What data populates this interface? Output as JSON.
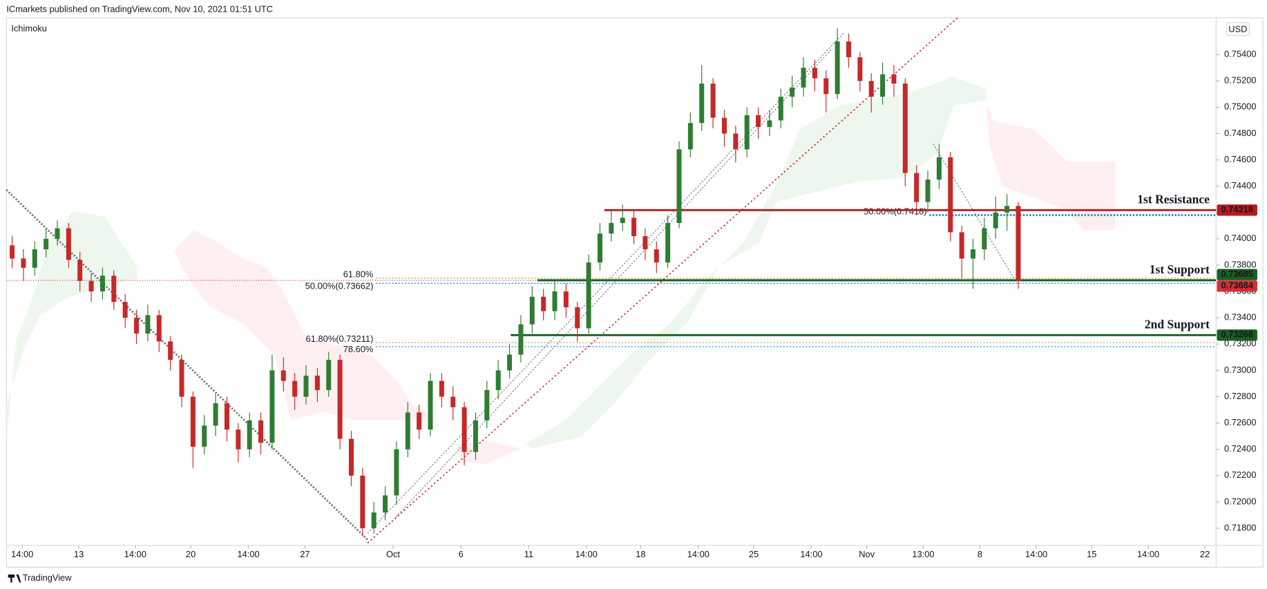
{
  "header": {
    "publisher": "ICmarkets published on TradingView.com, Nov 10, 2021 01:51 UTC",
    "indicator": "Ichimoku",
    "currency": "USD",
    "footer": "TradingView"
  },
  "chart_data": {
    "type": "candlestick",
    "up_color": "#2e7d32",
    "down_color": "#c62828",
    "xlim": [
      -0.5,
      106.5
    ],
    "xticks": [
      {
        "value": 0.9,
        "label": "14:00"
      },
      {
        "value": 5.9,
        "label": "13"
      },
      {
        "value": 10.9,
        "label": "14:00"
      },
      {
        "value": 15.8,
        "label": "20"
      },
      {
        "value": 20.9,
        "label": "14:00"
      },
      {
        "value": 25.9,
        "label": "27"
      },
      {
        "value": 33.7,
        "label": "Oct"
      },
      {
        "value": 39.7,
        "label": "6"
      },
      {
        "value": 45.7,
        "label": "11"
      },
      {
        "value": 50.8,
        "label": "14:00"
      },
      {
        "value": 55.6,
        "label": "18"
      },
      {
        "value": 60.7,
        "label": "14:00"
      },
      {
        "value": 65.6,
        "label": "25"
      },
      {
        "value": 70.7,
        "label": "14:00"
      },
      {
        "value": 75.6,
        "label": "Nov"
      },
      {
        "value": 80.6,
        "label": "13:00"
      },
      {
        "value": 85.6,
        "label": "8"
      },
      {
        "value": 90.6,
        "label": "14:00"
      },
      {
        "value": 95.5,
        "label": "15"
      },
      {
        "value": 100.5,
        "label": "14:00"
      },
      {
        "value": 105.5,
        "label": "22"
      }
    ],
    "ylim": [
      0.7167,
      0.7568
    ],
    "yticks": [
      {
        "value": 0.754,
        "label": "0.75400"
      },
      {
        "value": 0.752,
        "label": "0.75200"
      },
      {
        "value": 0.75,
        "label": "0.75000"
      },
      {
        "value": 0.748,
        "label": "0.74800"
      },
      {
        "value": 0.746,
        "label": "0.74600"
      },
      {
        "value": 0.744,
        "label": "0.74400"
      },
      {
        "value": 0.742,
        "label": "0.74200"
      },
      {
        "value": 0.74,
        "label": "0.74000"
      },
      {
        "value": 0.738,
        "label": "0.73800"
      },
      {
        "value": 0.736,
        "label": "0.73600"
      },
      {
        "value": 0.734,
        "label": "0.73400"
      },
      {
        "value": 0.732,
        "label": "0.73200"
      },
      {
        "value": 0.73,
        "label": "0.73000"
      },
      {
        "value": 0.728,
        "label": "0.72800"
      },
      {
        "value": 0.726,
        "label": "0.72600"
      },
      {
        "value": 0.724,
        "label": "0.72400"
      },
      {
        "value": 0.722,
        "label": "0.72200"
      },
      {
        "value": 0.72,
        "label": "0.72000"
      },
      {
        "value": 0.718,
        "label": "0.71800"
      }
    ],
    "ohlc": [
      [
        0.7395,
        0.7402,
        0.7378,
        0.7385
      ],
      [
        0.7385,
        0.7392,
        0.7368,
        0.7378
      ],
      [
        0.7378,
        0.7398,
        0.7372,
        0.7392
      ],
      [
        0.7392,
        0.7408,
        0.7386,
        0.74
      ],
      [
        0.74,
        0.7414,
        0.7395,
        0.7408
      ],
      [
        0.7408,
        0.7412,
        0.7378,
        0.7384
      ],
      [
        0.7384,
        0.739,
        0.736,
        0.7368
      ],
      [
        0.7368,
        0.7374,
        0.7352,
        0.736
      ],
      [
        0.736,
        0.7378,
        0.7354,
        0.7372
      ],
      [
        0.7372,
        0.7376,
        0.7346,
        0.7352
      ],
      [
        0.7352,
        0.7358,
        0.7332,
        0.734
      ],
      [
        0.734,
        0.7346,
        0.732,
        0.7328
      ],
      [
        0.7328,
        0.735,
        0.7322,
        0.7342
      ],
      [
        0.7342,
        0.7346,
        0.7314,
        0.7322
      ],
      [
        0.7322,
        0.7326,
        0.73,
        0.7308
      ],
      [
        0.7308,
        0.7312,
        0.7272,
        0.728
      ],
      [
        0.728,
        0.7284,
        0.7226,
        0.7242
      ],
      [
        0.7242,
        0.7266,
        0.7236,
        0.7258
      ],
      [
        0.7258,
        0.7282,
        0.725,
        0.7275
      ],
      [
        0.7275,
        0.728,
        0.7246,
        0.7255
      ],
      [
        0.7255,
        0.726,
        0.723,
        0.724
      ],
      [
        0.724,
        0.7268,
        0.7234,
        0.7262
      ],
      [
        0.7262,
        0.7268,
        0.7236,
        0.7245
      ],
      [
        0.7245,
        0.7312,
        0.724,
        0.73
      ],
      [
        0.73,
        0.731,
        0.7284,
        0.7292
      ],
      [
        0.7292,
        0.7298,
        0.727,
        0.728
      ],
      [
        0.728,
        0.7304,
        0.7274,
        0.7296
      ],
      [
        0.7296,
        0.7302,
        0.7276,
        0.7285
      ],
      [
        0.7285,
        0.7314,
        0.728,
        0.7308
      ],
      [
        0.7308,
        0.7312,
        0.724,
        0.7248
      ],
      [
        0.7248,
        0.7254,
        0.7212,
        0.722
      ],
      [
        0.722,
        0.7226,
        0.7174,
        0.718
      ],
      [
        0.718,
        0.72,
        0.7176,
        0.7192
      ],
      [
        0.7192,
        0.7212,
        0.7186,
        0.7205
      ],
      [
        0.7205,
        0.7246,
        0.7198,
        0.724
      ],
      [
        0.724,
        0.7276,
        0.7234,
        0.7268
      ],
      [
        0.7268,
        0.7274,
        0.7248,
        0.7255
      ],
      [
        0.7255,
        0.7298,
        0.725,
        0.7292
      ],
      [
        0.7292,
        0.7298,
        0.7272,
        0.728
      ],
      [
        0.728,
        0.7288,
        0.7262,
        0.7272
      ],
      [
        0.7272,
        0.7276,
        0.7228,
        0.7238
      ],
      [
        0.7238,
        0.7268,
        0.7232,
        0.7262
      ],
      [
        0.7262,
        0.7292,
        0.7256,
        0.7285
      ],
      [
        0.7285,
        0.7308,
        0.7278,
        0.73
      ],
      [
        0.73,
        0.732,
        0.7294,
        0.7312
      ],
      [
        0.7312,
        0.7342,
        0.7306,
        0.7335
      ],
      [
        0.7335,
        0.7364,
        0.7328,
        0.7356
      ],
      [
        0.7356,
        0.7362,
        0.7338,
        0.7345
      ],
      [
        0.7345,
        0.7368,
        0.7338,
        0.736
      ],
      [
        0.736,
        0.7366,
        0.734,
        0.7348
      ],
      [
        0.7348,
        0.7352,
        0.7322,
        0.7332
      ],
      [
        0.7332,
        0.7388,
        0.7328,
        0.7382
      ],
      [
        0.7382,
        0.7412,
        0.7376,
        0.7404
      ],
      [
        0.7404,
        0.7422,
        0.7398,
        0.7412
      ],
      [
        0.7412,
        0.7426,
        0.7406,
        0.7416
      ],
      [
        0.7416,
        0.7422,
        0.7396,
        0.7402
      ],
      [
        0.7402,
        0.7408,
        0.7384,
        0.7392
      ],
      [
        0.7392,
        0.7398,
        0.7374,
        0.7382
      ],
      [
        0.7382,
        0.7418,
        0.7378,
        0.7412
      ],
      [
        0.7412,
        0.7474,
        0.7408,
        0.7468
      ],
      [
        0.7468,
        0.7496,
        0.7462,
        0.7488
      ],
      [
        0.7488,
        0.7532,
        0.7482,
        0.7518
      ],
      [
        0.7518,
        0.7522,
        0.7484,
        0.7492
      ],
      [
        0.7492,
        0.7498,
        0.747,
        0.748
      ],
      [
        0.748,
        0.7486,
        0.7458,
        0.7468
      ],
      [
        0.7468,
        0.75,
        0.7462,
        0.7494
      ],
      [
        0.7494,
        0.75,
        0.7476,
        0.7485
      ],
      [
        0.7485,
        0.7498,
        0.7478,
        0.749
      ],
      [
        0.749,
        0.7514,
        0.7484,
        0.7508
      ],
      [
        0.7508,
        0.7524,
        0.75,
        0.7515
      ],
      [
        0.7515,
        0.7538,
        0.7508,
        0.753
      ],
      [
        0.753,
        0.7536,
        0.7512,
        0.7522
      ],
      [
        0.7522,
        0.7528,
        0.7496,
        0.751
      ],
      [
        0.751,
        0.756,
        0.7506,
        0.755
      ],
      [
        0.755,
        0.7556,
        0.753,
        0.7538
      ],
      [
        0.7538,
        0.7542,
        0.7512,
        0.752
      ],
      [
        0.752,
        0.7526,
        0.7496,
        0.7508
      ],
      [
        0.7508,
        0.7534,
        0.7502,
        0.7525
      ],
      [
        0.7525,
        0.7532,
        0.7508,
        0.7518
      ],
      [
        0.7518,
        0.7522,
        0.744,
        0.745
      ],
      [
        0.745,
        0.7456,
        0.7418,
        0.7428
      ],
      [
        0.7428,
        0.7452,
        0.742,
        0.7445
      ],
      [
        0.7445,
        0.7472,
        0.7438,
        0.7462
      ],
      [
        0.7462,
        0.7466,
        0.7398,
        0.7405
      ],
      [
        0.7405,
        0.741,
        0.737,
        0.7385
      ],
      [
        0.7385,
        0.74,
        0.7362,
        0.7392
      ],
      [
        0.7392,
        0.7416,
        0.7384,
        0.7408
      ],
      [
        0.7408,
        0.7432,
        0.74,
        0.742
      ],
      [
        0.742,
        0.7434,
        0.7406,
        0.7425
      ],
      [
        0.7425,
        0.7428,
        0.7362,
        0.7368
      ]
    ],
    "levels": [
      {
        "name": "1st Resistance",
        "value": 0.74218,
        "color": "#b71c1c"
      },
      {
        "name": "1st Support",
        "value": 0.73685,
        "color": "#1b5e20"
      },
      {
        "name": "2nd Support",
        "value": 0.73268,
        "color": "#1b5e20"
      }
    ],
    "last_price": {
      "value": 0.73684,
      "color": "#d32f2f"
    },
    "fib_levels": [
      {
        "label": "61.80%",
        "value": 0.737,
        "color": "#c9a13b"
      },
      {
        "label": "50.00%(0.73662)",
        "value": 0.73662,
        "color": "#1e88e5"
      },
      {
        "label": "61.80%(0.73211)",
        "value": 0.73211,
        "color": "#c9a13b"
      },
      {
        "label": "78.60%",
        "value": 0.7318,
        "color": "#1e88e5"
      },
      {
        "label": "50.00%(0.7418)",
        "value": 0.7418,
        "color": "#1e88e5"
      }
    ]
  }
}
